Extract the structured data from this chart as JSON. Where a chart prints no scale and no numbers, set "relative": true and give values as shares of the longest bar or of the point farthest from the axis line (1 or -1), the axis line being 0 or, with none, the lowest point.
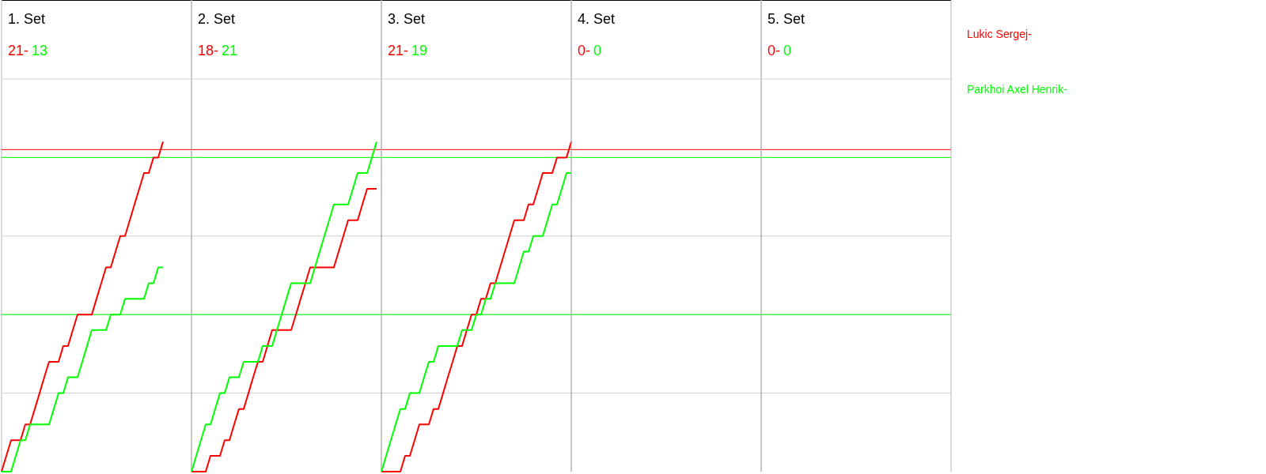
{
  "chart_data": [
    {
      "type": "line",
      "title": "1. Set",
      "annotations": [
        "21-",
        "13"
      ],
      "relative": true,
      "grid": true,
      "legend": "right",
      "categories": [
        null,
        null,
        null,
        null,
        null,
        null,
        null,
        null,
        null,
        null,
        null,
        null,
        null,
        null,
        null,
        null,
        null,
        null,
        null,
        null,
        null,
        null,
        null,
        null,
        null,
        null,
        null,
        null,
        null,
        null,
        null,
        null,
        null,
        null,
        null,
        null,
        null,
        null,
        null,
        null,
        null
      ],
      "ref_lines": [
        {
          "axis": "y",
          "value": 0.976,
          "color": "#ff0000"
        },
        {
          "axis": "y",
          "value": 0.952,
          "color": "#00ff00"
        },
        {
          "axis": "y",
          "value": 0.476,
          "color": "#00ff00"
        }
      ],
      "series": [
        {
          "name": "Lukic Sergej-",
          "color": "#ff0000",
          "values": [
            0,
            0.048,
            0.095,
            0.095,
            0.095,
            0.143,
            0.143,
            0.19,
            0.238,
            0.286,
            0.333,
            0.333,
            0.333,
            0.381,
            0.381,
            0.429,
            0.476,
            0.476,
            0.476,
            0.476,
            0.524,
            0.571,
            0.619,
            0.619,
            0.667,
            0.714,
            0.714,
            0.762,
            0.81,
            0.857,
            0.905,
            0.905,
            0.952,
            0.952,
            1,
            null,
            null,
            null,
            null,
            null,
            null
          ]
        },
        {
          "name": "Parkhoi Axel Henrik-",
          "color": "#00ff00",
          "values": [
            0,
            0,
            0,
            0.048,
            0.095,
            0.095,
            0.143,
            0.143,
            0.143,
            0.143,
            0.143,
            0.19,
            0.238,
            0.238,
            0.286,
            0.286,
            0.286,
            0.333,
            0.381,
            0.429,
            0.429,
            0.429,
            0.429,
            0.476,
            0.476,
            0.476,
            0.524,
            0.524,
            0.524,
            0.524,
            0.524,
            0.571,
            0.571,
            0.619,
            0.619,
            null,
            null,
            null,
            null,
            null,
            null
          ]
        }
      ]
    },
    {
      "type": "line",
      "title": "2. Set",
      "annotations": [
        "18-",
        "21"
      ],
      "relative": true,
      "categories": [
        null,
        null,
        null,
        null,
        null,
        null,
        null,
        null,
        null,
        null,
        null,
        null,
        null,
        null,
        null,
        null,
        null,
        null,
        null,
        null,
        null,
        null,
        null,
        null,
        null,
        null,
        null,
        null,
        null,
        null,
        null,
        null,
        null,
        null,
        null,
        null,
        null,
        null,
        null,
        null,
        null
      ],
      "series": [
        {
          "color": "#ff0000",
          "values": [
            0,
            0,
            0,
            0,
            0.048,
            0.048,
            0.048,
            0.095,
            0.095,
            0.143,
            0.19,
            0.19,
            0.238,
            0.286,
            0.333,
            0.333,
            0.381,
            0.429,
            0.429,
            0.429,
            0.429,
            0.429,
            0.476,
            0.524,
            0.571,
            0.619,
            0.619,
            0.619,
            0.619,
            0.619,
            0.619,
            0.667,
            0.714,
            0.762,
            0.762,
            0.762,
            0.81,
            0.857,
            0.857,
            0.857,
            null
          ]
        },
        {
          "color": "#00ff00",
          "values": [
            0,
            0.048,
            0.095,
            0.143,
            0.143,
            0.19,
            0.238,
            0.238,
            0.286,
            0.286,
            0.286,
            0.333,
            0.333,
            0.333,
            0.333,
            0.381,
            0.381,
            0.381,
            0.429,
            0.476,
            0.524,
            0.571,
            0.571,
            0.571,
            0.571,
            0.571,
            0.619,
            0.667,
            0.714,
            0.762,
            0.81,
            0.81,
            0.81,
            0.81,
            0.857,
            0.905,
            0.905,
            0.905,
            0.952,
            1,
            null
          ]
        }
      ]
    },
    {
      "type": "line",
      "title": "3. Set",
      "annotations": [
        "21-",
        "19"
      ],
      "relative": true,
      "categories": [
        null,
        null,
        null,
        null,
        null,
        null,
        null,
        null,
        null,
        null,
        null,
        null,
        null,
        null,
        null,
        null,
        null,
        null,
        null,
        null,
        null,
        null,
        null,
        null,
        null,
        null,
        null,
        null,
        null,
        null,
        null,
        null,
        null,
        null,
        null,
        null,
        null,
        null,
        null,
        null,
        null
      ],
      "series": [
        {
          "color": "#ff0000",
          "values": [
            0,
            0,
            0,
            0,
            0,
            0.048,
            0.048,
            0.095,
            0.143,
            0.143,
            0.143,
            0.19,
            0.19,
            0.238,
            0.286,
            0.333,
            0.381,
            0.381,
            0.429,
            0.476,
            0.476,
            0.524,
            0.524,
            0.571,
            0.571,
            0.619,
            0.667,
            0.714,
            0.762,
            0.762,
            0.762,
            0.81,
            0.81,
            0.857,
            0.905,
            0.905,
            0.905,
            0.952,
            0.952,
            0.952,
            1
          ]
        },
        {
          "color": "#00ff00",
          "values": [
            0,
            0.048,
            0.095,
            0.143,
            0.19,
            0.19,
            0.238,
            0.238,
            0.238,
            0.286,
            0.333,
            0.333,
            0.381,
            0.381,
            0.381,
            0.381,
            0.381,
            0.429,
            0.429,
            0.429,
            0.476,
            0.476,
            0.524,
            0.524,
            0.571,
            0.571,
            0.571,
            0.571,
            0.571,
            0.619,
            0.667,
            0.667,
            0.714,
            0.714,
            0.714,
            0.762,
            0.81,
            0.81,
            0.857,
            0.905,
            0.905
          ]
        }
      ]
    },
    {
      "type": "other",
      "title": "4. Set",
      "annotations": [
        "0-",
        "0"
      ]
    },
    {
      "type": "other",
      "title": "5. Set",
      "annotations": [
        "0-",
        "0"
      ]
    }
  ]
}
